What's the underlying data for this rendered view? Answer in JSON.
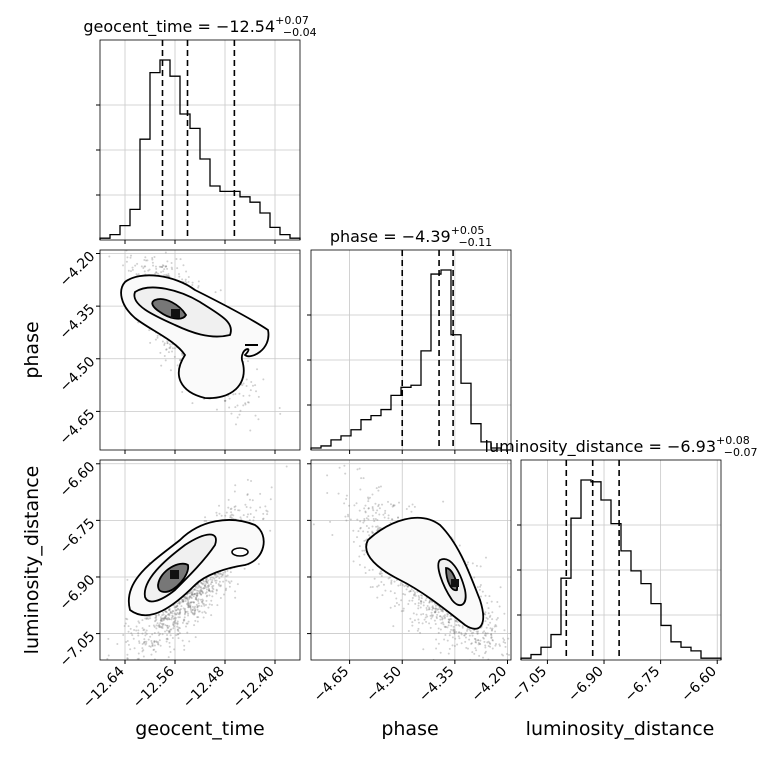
{
  "chart_data": {
    "type": "corner",
    "parameters": [
      "geocent_time",
      "phase",
      "luminosity_distance"
    ],
    "titles": [
      {
        "name": "geocent_time",
        "median": "−12.54",
        "plus": "+0.07",
        "minus": "−0.04"
      },
      {
        "name": "phase",
        "median": "−4.39",
        "plus": "+0.05",
        "minus": "−0.11"
      },
      {
        "name": "luminosity_distance",
        "median": "−6.93",
        "plus": "+0.08",
        "minus": "−0.07"
      }
    ],
    "axes": {
      "geocent_time": {
        "range": [
          -12.68,
          -12.36
        ],
        "ticks": [
          -12.64,
          -12.56,
          -12.48,
          -12.4
        ],
        "tick_labels": [
          "−12.64",
          "−12.56",
          "−12.48",
          "−12.40"
        ]
      },
      "phase": {
        "range": [
          -4.76,
          -4.19
        ],
        "ticks": [
          -4.65,
          -4.5,
          -4.35,
          -4.2
        ],
        "tick_labels": [
          "−4.65",
          "−4.50",
          "−4.35",
          "−4.20"
        ]
      },
      "luminosity_distance": {
        "range": [
          -7.12,
          -6.59
        ],
        "ticks": [
          -7.05,
          -6.9,
          -6.75,
          -6.6
        ],
        "tick_labels": [
          "−7.05",
          "−6.90",
          "−6.75",
          "−6.60"
        ]
      }
    },
    "quantile_lines": {
      "geocent_time": [
        -12.58,
        -12.54,
        -12.465
      ],
      "phase": [
        -4.5,
        -4.395,
        -4.355
      ],
      "luminosity_distance": [
        -7.0,
        -6.93,
        -6.86
      ]
    },
    "histograms": {
      "geocent_time": {
        "edges_start": -12.68,
        "bin_width": 0.016,
        "counts": [
          1,
          3,
          8,
          17,
          56,
          93,
          100,
          91,
          70,
          62,
          45,
          30,
          27,
          27,
          24,
          21,
          15,
          7,
          3,
          1
        ]
      },
      "phase": {
        "edges_start": -4.76,
        "bin_width": 0.0285,
        "counts": [
          1,
          2,
          5,
          7,
          10,
          15,
          17,
          20,
          27,
          31,
          32,
          49,
          87,
          89,
          57,
          33,
          13,
          4,
          1,
          0
        ]
      },
      "luminosity_distance": {
        "edges_start": -7.12,
        "bin_width": 0.0265,
        "counts": [
          1,
          3,
          7,
          14,
          45,
          78,
          99,
          98,
          88,
          75,
          60,
          49,
          42,
          31,
          19,
          10,
          7,
          5,
          1,
          1
        ]
      }
    },
    "grid": true
  }
}
